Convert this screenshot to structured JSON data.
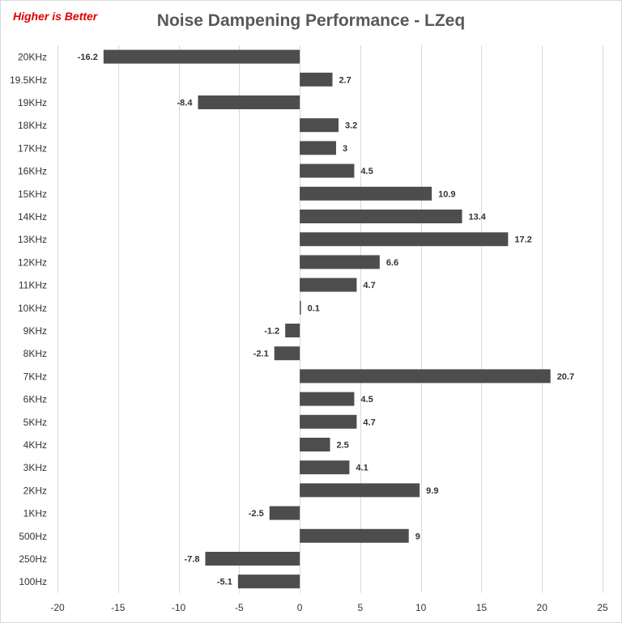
{
  "chart_data": {
    "type": "bar",
    "orientation": "horizontal",
    "title": "Noise Dampening Performance - LZeq",
    "annotation": "Higher is Better",
    "categories": [
      "20KHz",
      "19.5KHz",
      "19KHz",
      "18KHz",
      "17KHz",
      "16KHz",
      "15KHz",
      "14KHz",
      "13KHz",
      "12KHz",
      "11KHz",
      "10KHz",
      "9KHz",
      "8KHz",
      "7KHz",
      "6KHz",
      "5KHz",
      "4KHz",
      "3KHz",
      "2KHz",
      "1KHz",
      "500Hz",
      "250Hz",
      "100Hz"
    ],
    "values": [
      -16.2,
      2.7,
      -8.4,
      3.2,
      3,
      4.5,
      10.9,
      13.4,
      17.2,
      6.6,
      4.7,
      0.1,
      -1.2,
      -2.1,
      20.7,
      4.5,
      4.7,
      2.5,
      4.1,
      9.9,
      -2.5,
      9,
      -7.8,
      -5.1
    ],
    "value_labels": [
      "-16.2",
      "2.7",
      "-8.4",
      "3.2",
      "3",
      "4.5",
      "10.9",
      "13.4",
      "17.2",
      "6.6",
      "4.7",
      "0.1",
      "-1.2",
      "-2.1",
      "20.7",
      "4.5",
      "4.7",
      "2.5",
      "4.1",
      "9.9",
      "-2.5",
      "9",
      "-7.8",
      "-5.1"
    ],
    "xlim": [
      -20,
      25
    ],
    "x_ticks": [
      "-20",
      "-15",
      "-10",
      "-5",
      "0",
      "5",
      "10",
      "15",
      "20",
      "25"
    ],
    "x_tick_values": [
      -20,
      -15,
      -10,
      -5,
      0,
      5,
      10,
      15,
      20,
      25
    ],
    "grid": true,
    "bar_color": "#4d4d4d",
    "annotation_color": "#e00000",
    "title_color": "#595959"
  }
}
